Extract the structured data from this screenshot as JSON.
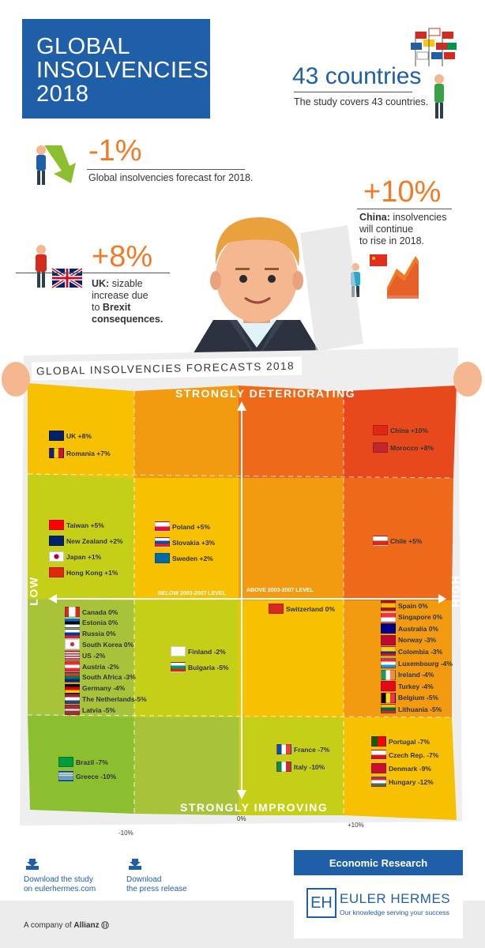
{
  "header": {
    "title_lines": [
      "GLOBAL",
      "INSOLVENCIES",
      "2018"
    ]
  },
  "stats": {
    "countries": {
      "headline": "43 countries",
      "text": "The study covers 43 countries."
    },
    "global": {
      "headline": "-1%",
      "text": "Global insolvencies forecast for 2018."
    },
    "china": {
      "headline": "+10%",
      "label": "China:",
      "text_lines": [
        "insolvencies",
        "will continue",
        "to rise in 2018."
      ]
    },
    "uk": {
      "headline": "+8%",
      "label": "UK:",
      "text_lines": [
        "sizable",
        "increase due",
        "to",
        "Brexit",
        "consequences."
      ]
    }
  },
  "map": {
    "title": "GLOBAL INSOLVENCIES FORECASTS 2018",
    "top_label": "STRONGLY DETERIORATING",
    "bottom_label": "STRONGLY IMPROVING",
    "left_label": "LOW",
    "right_label": "HIGH",
    "below_level": "BELOW 2003-2007 LEVEL",
    "above_level": "ABOVE 2003-2007 LEVEL",
    "x_ticks": [
      "-10%",
      "0%",
      "+10%"
    ],
    "groups": {
      "g1": [
        {
          "name": "UK +8%",
          "flag": "uk"
        },
        {
          "name": "Romania +7%",
          "flag": "ro"
        }
      ],
      "g2": [
        {
          "name": "China +10%",
          "flag": "cn"
        },
        {
          "name": "Morocco +8%",
          "flag": "ma"
        }
      ],
      "g3": [
        {
          "name": "Taiwan +5%",
          "flag": "tw"
        },
        {
          "name": "New Zealand +2%",
          "flag": "nz"
        },
        {
          "name": "Japan +1%",
          "flag": "jp"
        },
        {
          "name": "Hong Kong +1%",
          "flag": "hk"
        }
      ],
      "g4": [
        {
          "name": "Poland +5%",
          "flag": "pl"
        },
        {
          "name": "Slovakia +3%",
          "flag": "sk"
        },
        {
          "name": "Sweden +2%",
          "flag": "se"
        }
      ],
      "g5": [
        {
          "name": "Chile +5%",
          "flag": "cl"
        }
      ],
      "g6": [
        {
          "name": "Canada 0%",
          "flag": "ca"
        },
        {
          "name": "Estonia 0%",
          "flag": "ee"
        },
        {
          "name": "Russia  0%",
          "flag": "ru"
        },
        {
          "name": "South Korea 0%",
          "flag": "kr"
        },
        {
          "name": "US -2%",
          "flag": "us"
        },
        {
          "name": "Austria -2%",
          "flag": "at"
        },
        {
          "name": "South Africa -3%",
          "flag": "za"
        },
        {
          "name": "Germany -4%",
          "flag": "de"
        },
        {
          "name": "The Netherlands-5%",
          "flag": "nl"
        },
        {
          "name": "Latvia -5%",
          "flag": "lv"
        }
      ],
      "g7": [
        {
          "name": "Finland -2%",
          "flag": "fi"
        },
        {
          "name": "Bulgaria -5%",
          "flag": "bg"
        }
      ],
      "g8": [
        {
          "name": "Switzerland 0%",
          "flag": "ch"
        }
      ],
      "g9": [
        {
          "name": "Spain 0%",
          "flag": "es"
        },
        {
          "name": "Singapore 0%",
          "flag": "sg"
        },
        {
          "name": "Australia 0%",
          "flag": "au"
        },
        {
          "name": "Norway -3%",
          "flag": "no"
        },
        {
          "name": "Colombia -3%",
          "flag": "co"
        },
        {
          "name": "Luxembourg -4%",
          "flag": "lu"
        },
        {
          "name": "Ireland -4%",
          "flag": "ie"
        },
        {
          "name": "Turkey -4%",
          "flag": "tr"
        },
        {
          "name": "Belgium -5%",
          "flag": "be"
        },
        {
          "name": "Lithuania -5%",
          "flag": "lt"
        }
      ],
      "g10": [
        {
          "name": "Brazil -7%",
          "flag": "br"
        },
        {
          "name": "Greece -10%",
          "flag": "gr"
        }
      ],
      "g11": [
        {
          "name": "France -7%",
          "flag": "fr"
        },
        {
          "name": "Italy -10%",
          "flag": "it"
        }
      ],
      "g12": [
        {
          "name": "Portugal -7%",
          "flag": "pt"
        },
        {
          "name": "Czech Rep. -7%",
          "flag": "cz"
        },
        {
          "name": "Denmark -9%",
          "flag": "dk"
        },
        {
          "name": "Hungary -12%",
          "flag": "hu"
        }
      ]
    }
  },
  "footer": {
    "download_study_lines": [
      "Download the study",
      "on eulerhermes.com"
    ],
    "download_press_lines": [
      "Download",
      "the press release"
    ],
    "research_label": "Economic Research",
    "brand_name": "EULER HERMES",
    "brand_tagline": "Our knowledge serving your success",
    "brand_mark": "EH",
    "company_prefix": "A company of",
    "company_name": "Allianz"
  },
  "colors": {
    "brand_blue": "#1f5fa8",
    "accent_orange": "#f07b26"
  }
}
